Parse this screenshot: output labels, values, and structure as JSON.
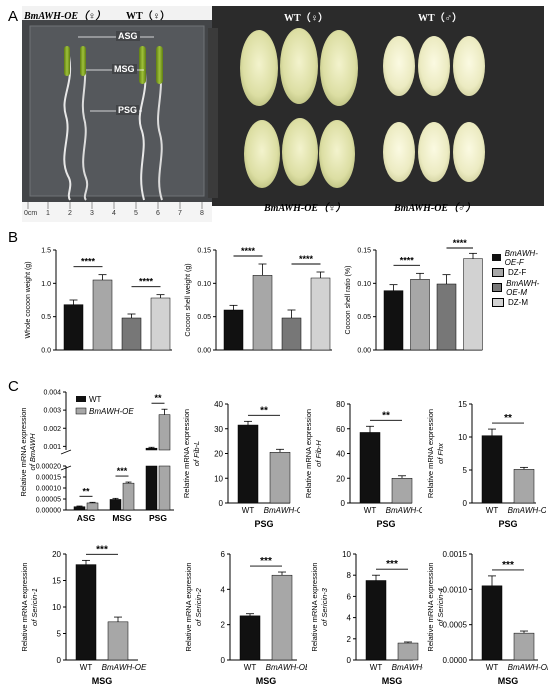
{
  "panels": {
    "A": "A",
    "B": "B",
    "C": "C"
  },
  "photo": {
    "left_group_1": "BmAWH-OE（♀）",
    "left_group_2": "WT（♀）",
    "labels": [
      "ASG",
      "MSG",
      "PSG"
    ],
    "ruler": [
      "0cm",
      "1",
      "2",
      "3",
      "4",
      "5",
      "6",
      "7",
      "8"
    ],
    "top_right_1": "WT（♀）",
    "top_right_2": "WT（♂）",
    "bottom_right_1": "BmAWH-OE（♀）",
    "bottom_right_2": "BmAWH-OE（♂）",
    "colors": {
      "background": "#3a3a3a",
      "cocoon_female": "#e6e7b8",
      "cocoon_male": "#f1efcc"
    }
  },
  "legend_B": [
    "BmAWH-OE-F",
    "DZ-F",
    "BmAWH-OE-M",
    "DZ-M"
  ],
  "legend_C": [
    "WT",
    "BmAWH-OE"
  ],
  "colors": {
    "black": "#111111",
    "gray": "#a7a7a7",
    "dark_gray": "#777777",
    "light_gray": "#d2d2d2"
  },
  "chart_data": [
    {
      "id": "B1",
      "type": "bar",
      "ylabel": "Whole cocoon weight (g)",
      "ylim": [
        0,
        1.5
      ],
      "yticks": [
        "0.0",
        "0.5",
        "1.0",
        "1.5"
      ],
      "values": [
        0.68,
        1.05,
        0.48,
        0.78
      ],
      "errors": [
        0.07,
        0.08,
        0.06,
        0.05
      ],
      "sig": [
        {
          "a": 0,
          "b": 1,
          "label": "****"
        },
        {
          "a": 2,
          "b": 3,
          "label": "****"
        }
      ]
    },
    {
      "id": "B2",
      "type": "bar",
      "ylabel": "Cocoon shell weight (g)",
      "ylim": [
        0,
        0.15
      ],
      "yticks": [
        "0.00",
        "0.05",
        "0.10",
        "0.15"
      ],
      "values": [
        0.06,
        0.112,
        0.048,
        0.108
      ],
      "errors": [
        0.007,
        0.017,
        0.012,
        0.009
      ],
      "sig": [
        {
          "a": 0,
          "b": 1,
          "label": "****"
        },
        {
          "a": 2,
          "b": 3,
          "label": "****"
        }
      ]
    },
    {
      "id": "B3",
      "type": "bar",
      "ylabel": "Cocoon shell ratio (%)",
      "ylim": [
        0,
        0.15
      ],
      "yticks": [
        "0.00",
        "0.05",
        "0.10",
        "0.15"
      ],
      "values": [
        0.089,
        0.106,
        0.099,
        0.137
      ],
      "errors": [
        0.009,
        0.009,
        0.014,
        0.008
      ],
      "sig": [
        {
          "a": 0,
          "b": 1,
          "label": "****"
        },
        {
          "a": 2,
          "b": 3,
          "label": "****"
        }
      ]
    },
    {
      "id": "C1",
      "type": "bar",
      "ylabel_lines": [
        "Relative mRNA expression",
        "of BmAWH"
      ],
      "categories": [
        "ASG",
        "MSG",
        "PSG"
      ],
      "series": [
        {
          "name": "WT",
          "values": [
            1.5e-05,
            4.8e-05,
            0.0009
          ]
        },
        {
          "name": "BmAWH-OE",
          "values": [
            3.2e-05,
            0.000122,
            0.00275
          ]
        }
      ],
      "errors": [
        [
          3e-06,
          5e-06,
          5e-05
        ],
        [
          3e-06,
          5e-06,
          0.0003
        ]
      ],
      "upper_ticks": [
        "0.001",
        "0.002",
        "0.003",
        "0.004"
      ],
      "lower_ticks": [
        "0.00000",
        "0.00005",
        "0.00010",
        "0.00015",
        "0.00020"
      ],
      "sig": [
        "**",
        "***",
        "**"
      ]
    },
    {
      "id": "C2",
      "type": "bar",
      "ylabel_lines": [
        "Relative mRNA expression",
        "of Fib-L"
      ],
      "xlabel": "PSG",
      "categories": [
        "WT",
        "BmAWH-OE"
      ],
      "values": [
        31.5,
        20.5
      ],
      "errors": [
        1.5,
        1.2
      ],
      "ylim": [
        0,
        40
      ],
      "yticks": [
        "0",
        "10",
        "20",
        "30",
        "40"
      ],
      "sig": "**"
    },
    {
      "id": "C3",
      "type": "bar",
      "ylabel_lines": [
        "Relative mRNA expression",
        "of Fib-H"
      ],
      "xlabel": "PSG",
      "categories": [
        "WT",
        "BmAWH-OE"
      ],
      "values": [
        57,
        20
      ],
      "errors": [
        5,
        2
      ],
      "ylim": [
        0,
        80
      ],
      "yticks": [
        "0",
        "20",
        "40",
        "60",
        "80"
      ],
      "sig": "**"
    },
    {
      "id": "C4",
      "type": "bar",
      "ylabel_lines": [
        "Relative mRNA expression",
        "of Fhx"
      ],
      "xlabel": "PSG",
      "categories": [
        "WT",
        "BmAWH-OE"
      ],
      "values": [
        10.2,
        5.1
      ],
      "errors": [
        1.0,
        0.3
      ],
      "ylim": [
        0,
        15
      ],
      "yticks": [
        "0",
        "5",
        "10",
        "15"
      ],
      "sig": "**"
    },
    {
      "id": "C5",
      "type": "bar",
      "ylabel_lines": [
        "Relative mRNA expression",
        "of Sericin-1"
      ],
      "xlabel": "MSG",
      "categories": [
        "WT",
        "BmAWH-OE"
      ],
      "values": [
        18,
        7.2
      ],
      "errors": [
        0.8,
        0.9
      ],
      "ylim": [
        0,
        20
      ],
      "yticks": [
        "0",
        "5",
        "10",
        "15",
        "20"
      ],
      "sig": "***"
    },
    {
      "id": "C6",
      "type": "bar",
      "ylabel_lines": [
        "Relative mRNA expression",
        "of Sericin-2"
      ],
      "xlabel": "MSG",
      "categories": [
        "WT",
        "BmAWH-OE"
      ],
      "values": [
        2.5,
        4.8
      ],
      "errors": [
        0.12,
        0.18
      ],
      "ylim": [
        0,
        6
      ],
      "yticks": [
        "0",
        "2",
        "4",
        "6"
      ],
      "sig": "***"
    },
    {
      "id": "C7",
      "type": "bar",
      "ylabel_lines": [
        "Relative mRNA expression",
        "of Sericin-3"
      ],
      "xlabel": "MSG",
      "categories": [
        "WT",
        "BmAWH-OE"
      ],
      "values": [
        7.5,
        1.6
      ],
      "errors": [
        0.5,
        0.1
      ],
      "ylim": [
        0,
        10
      ],
      "yticks": [
        "0",
        "2",
        "4",
        "6",
        "8",
        "10"
      ],
      "sig": "***"
    },
    {
      "id": "C8",
      "type": "bar",
      "ylabel_lines": [
        "Relative mRNA expression",
        "of Sericin-4"
      ],
      "xlabel": "MSG",
      "categories": [
        "WT",
        "BmAWH-OE"
      ],
      "values": [
        0.00105,
        0.00038
      ],
      "errors": [
        0.00014,
        3e-05
      ],
      "ylim": [
        0,
        0.0015
      ],
      "yticks": [
        "0.0000",
        "0.0005",
        "0.0010",
        "0.0015"
      ],
      "sig": "***"
    }
  ]
}
